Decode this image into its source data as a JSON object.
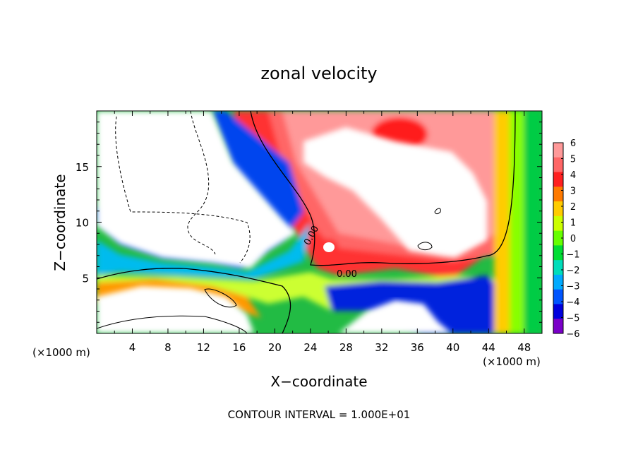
{
  "chart_data": {
    "type": "heatmap",
    "title": "zonal velocity",
    "xlabel": "X−coordinate",
    "ylabel": "Z−coordinate",
    "x_unit_left": "(×1000 m)",
    "x_unit_right": "(×1000 m)",
    "xlim": [
      0,
      50
    ],
    "ylim": [
      0,
      20
    ],
    "x_ticks": [
      4,
      8,
      12,
      16,
      20,
      24,
      28,
      32,
      36,
      40,
      44,
      48
    ],
    "x_tick_labels": [
      "4",
      "8",
      "12",
      "16",
      "20",
      "24",
      "28",
      "32",
      "36",
      "40",
      "44",
      "48"
    ],
    "y_ticks": [
      5,
      10,
      15
    ],
    "y_tick_labels": [
      "5",
      "10",
      "15"
    ],
    "colorbar": {
      "levels": [
        6,
        5,
        4,
        3,
        2,
        1,
        0,
        -1,
        -2,
        -3,
        -4,
        -5,
        -6
      ],
      "labels": [
        "6",
        "5",
        "4",
        "3",
        "2",
        "1",
        "0",
        "−1",
        "−2",
        "−3",
        "−4",
        "−5",
        "−6"
      ]
    },
    "contour_labels": [
      "0.00",
      "0.00"
    ],
    "footer": "CONTOUR INTERVAL = 1.000E+01",
    "colors": {
      "background": "#ffffff",
      "axes": "#000000",
      "scale": [
        "#ff9999",
        "#ff6666",
        "#ff2020",
        "#ff7a00",
        "#ffcc00",
        "#ccff00",
        "#66ff00",
        "#00dd33",
        "#00ddbb",
        "#00aaff",
        "#0055ff",
        "#0000dd",
        "#7a00c8"
      ]
    }
  }
}
